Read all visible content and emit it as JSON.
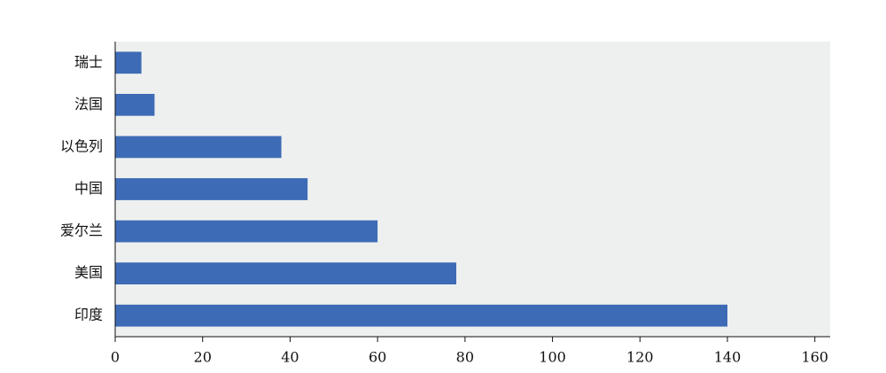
{
  "chart_data": {
    "type": "barh",
    "categories": [
      "瑞士",
      "法国",
      "以色列",
      "中国",
      "爱尔兰",
      "美国",
      "印度"
    ],
    "values": [
      6,
      9,
      38,
      44,
      60,
      78,
      140
    ],
    "color": "#3d6bb5",
    "xlim": [
      0,
      163.5
    ],
    "xticks": [
      0,
      20,
      40,
      60,
      80,
      100,
      120,
      140,
      160
    ],
    "background": "#eef0f0"
  }
}
